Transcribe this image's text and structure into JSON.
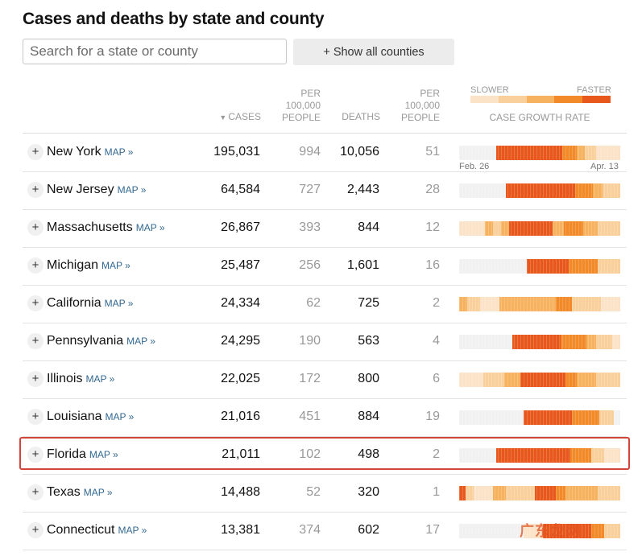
{
  "title": "Cases and deaths by state and county",
  "search": {
    "placeholder": "Search for a state or county"
  },
  "show_all_label": "+ Show all counties",
  "headers": {
    "cases": "CASES",
    "per_cases": [
      "PER",
      "100,000",
      "PEOPLE"
    ],
    "deaths": "DEATHS",
    "per_deaths": [
      "PER",
      "100,000",
      "PEOPLE"
    ],
    "slower": "SLOWER",
    "faster": "FASTER",
    "growth": "CASE GROWTH RATE"
  },
  "sort_arrow": "▼",
  "dates": {
    "start": "Feb. 26",
    "end": "Apr. 13"
  },
  "map_link": "MAP »",
  "plus": "+",
  "legend_colors": [
    "#fbe3c8",
    "#f9cf9c",
    "#f6b25e",
    "#f28a2a",
    "#e8581c"
  ],
  "rows": [
    {
      "state": "New York",
      "cases": "195,031",
      "per_cases": "994",
      "deaths": "10,056",
      "per_deaths": "51"
    },
    {
      "state": "New Jersey",
      "cases": "64,584",
      "per_cases": "727",
      "deaths": "2,443",
      "per_deaths": "28"
    },
    {
      "state": "Massachusetts",
      "cases": "26,867",
      "per_cases": "393",
      "deaths": "844",
      "per_deaths": "12"
    },
    {
      "state": "Michigan",
      "cases": "25,487",
      "per_cases": "256",
      "deaths": "1,601",
      "per_deaths": "16"
    },
    {
      "state": "California",
      "cases": "24,334",
      "per_cases": "62",
      "deaths": "725",
      "per_deaths": "2"
    },
    {
      "state": "Pennsylvania",
      "cases": "24,295",
      "per_cases": "190",
      "deaths": "563",
      "per_deaths": "4"
    },
    {
      "state": "Illinois",
      "cases": "22,025",
      "per_cases": "172",
      "deaths": "800",
      "per_deaths": "6"
    },
    {
      "state": "Louisiana",
      "cases": "21,016",
      "per_cases": "451",
      "deaths": "884",
      "per_deaths": "19"
    },
    {
      "state": "Florida",
      "cases": "21,011",
      "per_cases": "102",
      "deaths": "498",
      "per_deaths": "2"
    },
    {
      "state": "Texas",
      "cases": "14,488",
      "per_cases": "52",
      "deaths": "320",
      "per_deaths": "1"
    },
    {
      "state": "Connecticut",
      "cases": "13,381",
      "per_cases": "374",
      "deaths": "602",
      "per_deaths": "17"
    }
  ],
  "watermark": "广东龙网"
}
